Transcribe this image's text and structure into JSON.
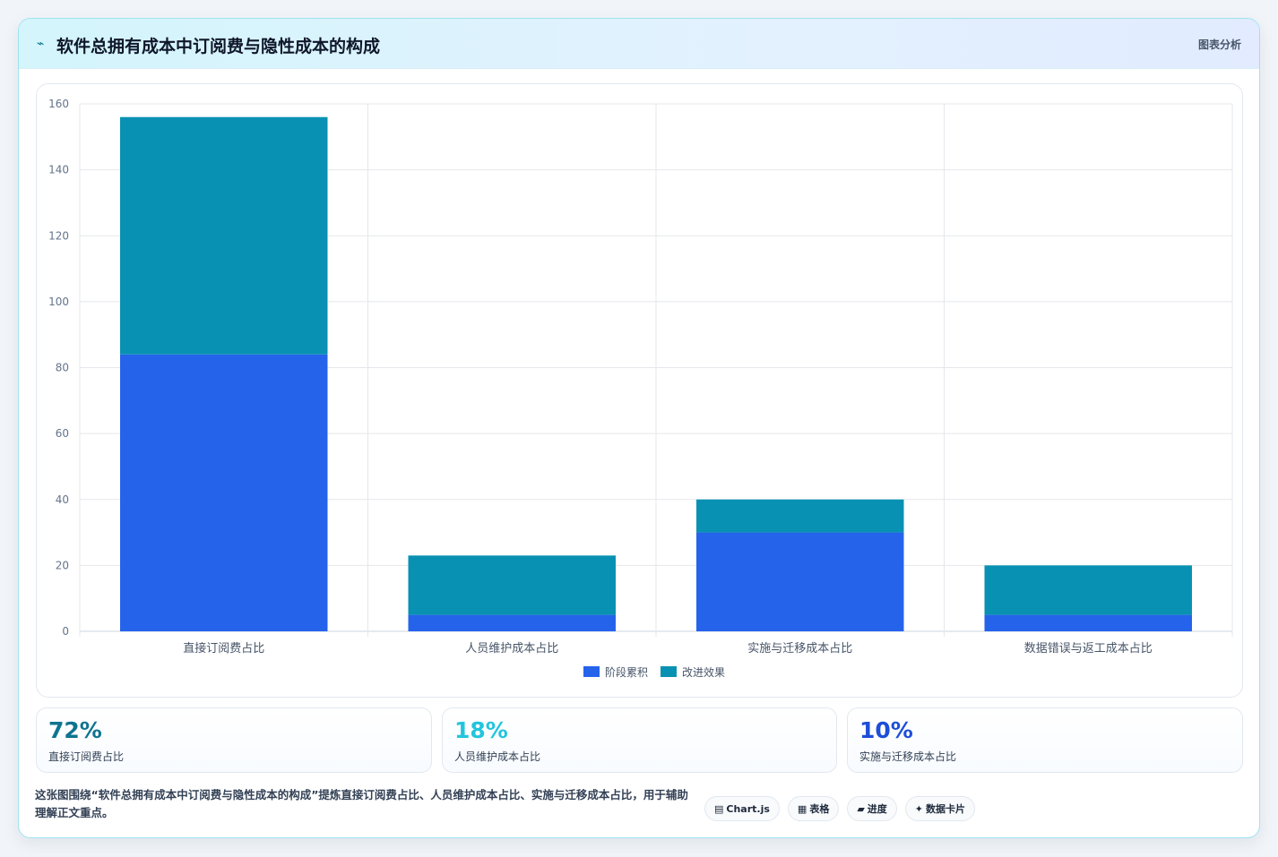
{
  "header": {
    "icon": "chart-trend-icon",
    "title": "软件总拥有成本中订阅费与隐性成本的构成",
    "badge": "图表分析"
  },
  "chart_data": {
    "type": "bar",
    "stacked": true,
    "categories": [
      "直接订阅费占比",
      "人员维护成本占比",
      "实施与迁移成本占比",
      "数据错误与返工成本占比"
    ],
    "series": [
      {
        "name": "阶段累积",
        "color": "#2563eb",
        "values": [
          84,
          5,
          30,
          5
        ]
      },
      {
        "name": "改进效果",
        "color": "#0891b2",
        "values": [
          72,
          18,
          10,
          15
        ]
      }
    ],
    "ylim": [
      0,
      160
    ],
    "yticks": [
      0,
      20,
      40,
      60,
      80,
      100,
      120,
      140,
      160
    ],
    "grid": true,
    "legend_position": "bottom-center"
  },
  "stats": [
    {
      "value": "72%",
      "label": "直接订阅费占比",
      "color": "#0e7490"
    },
    {
      "value": "18%",
      "label": "人员维护成本占比",
      "color": "#22c5dd"
    },
    {
      "value": "10%",
      "label": "实施与迁移成本占比",
      "color": "#1d4ed8"
    }
  ],
  "note": "这张图围绕“软件总拥有成本中订阅费与隐性成本的构成”提炼直接订阅费占比、人员维护成本占比、实施与迁移成本占比，用于辅助理解正文重点。",
  "tags": [
    {
      "icon": "▤",
      "icon_name": "chart-icon",
      "label": "Chart.js"
    },
    {
      "icon": "▦",
      "icon_name": "table-icon",
      "label": "表格"
    },
    {
      "icon": "▰",
      "icon_name": "progress-icon",
      "label": "进度"
    },
    {
      "icon": "✦",
      "icon_name": "sparkle-icon",
      "label": "数据卡片"
    }
  ]
}
